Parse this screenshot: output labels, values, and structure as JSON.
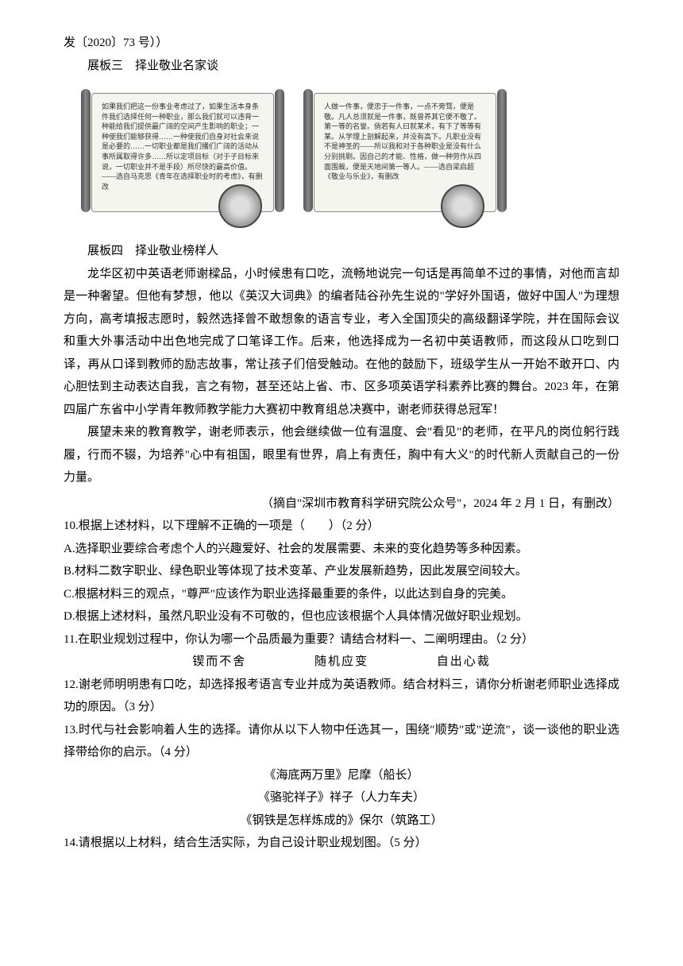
{
  "header_line": "发〔2020〕73 号））",
  "board3_title": "展板三　择业敬业名家谈",
  "scroll_left": {
    "text": "如果我们把这一份事业考虑过了，如果生活本身条件我们选择任何一种职业，那么我们就可以违背一种能给我们提供最广阔的空间产生影响的职业；一种使我们能够获得……一种使我们自身对社会来说是必要的……一切职业都是我们播们广阔的活动从事所属取得许多……所以定项目标（对于子目标来说，一切职业并不是手段）所尽快的最高价值。——选自马克思《青年在选择职业时的考虑》，有删改",
    "portrait": "马克思"
  },
  "scroll_right": {
    "text": "人做一件事，便忠于一件事，一点不旁骛，便是敬。凡人总须就是一件事，既曾养其它便不敬了。第一等的名誉。倘若有人曰就某术，有下了等等有某。从学理上剖解起来，并没有高下。凡职业没有不是神圣的——所以我和对于各种职业是没有什么分别挑剔。因自己的才能、性格，做一种劳作从四面围裁，便是天地间第一等人。——选自梁启超《敬业与乐业》，有删改",
    "portrait": "梁启超"
  },
  "board4_title": "展板四　择业敬业榜样人",
  "para1": "龙华区初中英语老师谢樑品，小时候患有口吃，流畅地说完一句话是再简单不过的事情，对他而言却是一种奢望。但他有梦想，他以《英汉大词典》的编者陆谷孙先生说的\"学好外国语，做好中国人\"为理想方向，高考填报志愿时，毅然选择曾不敢想象的语言专业，考入全国顶尖的高级翻译学院，并在国际会议和重大外事活动中出色地完成了口笔译工作。后来，他选择成为一名初中英语教师，而这段从口吃到口译，再从口译到教师的励志故事，常让孩子们倍受触动。在他的鼓励下，班级学生从一开始不敢开口、内心胆怯到主动表达自我，言之有物，甚至还站上省、市、区多项英语学科素养比赛的舞台。2023 年，在第四届广东省中小学青年教师教学能力大赛初中教育组总决赛中，谢老师获得总冠军！",
  "para2": "展望未来的教育教学，谢老师表示，他会继续做一位有温度、会\"看见\"的老师，在平凡的岗位躬行践履，行而不辍，为培养\"心中有祖国，眼里有世界，肩上有责任，胸中有大义\"的时代新人贡献自己的一份力量。",
  "source": "（摘自\"深圳市教育科学研究院公众号\"，2024 年 2 月 1 日，有删改）",
  "q10": "10.根据上述材料，以下理解不正确的一项是（　　）（2 分）",
  "q10_a": "A.选择职业要综合考虑个人的兴趣爱好、社会的发展需要、未来的变化趋势等多种因素。",
  "q10_b": "B.材料二数字职业、绿色职业等体现了技术变革、产业发展新趋势，因此发展空间较大。",
  "q10_c": "C.根据材料三的观点，\"尊严\"应该作为职业选择最重要的条件，以此达到自身的完美。",
  "q10_d": "D.根据上述材料，虽然凡职业没有不可敬的，但也应该根据个人具体情况做好职业规划。",
  "q11": "11.在职业规划过程中，你认为哪一个品质最为重要？请结合材料一、二阐明理由。（2 分）",
  "q11_opt1": "锲而不舍",
  "q11_opt2": "随机应变",
  "q11_opt3": "自出心裁",
  "q12": "12.谢老师明明患有口吃，却选择报考语言专业并成为英语教师。结合材料三，请你分析谢老师职业选择成功的原因。（3 分）",
  "q13": "13.时代与社会影响着人生的选择。请你从以下人物中任选其一，围绕\"顺势\"或\"逆流\"，谈一谈他的职业选择带给你的启示。（4 分）",
  "q13_book1": "《海底两万里》尼摩（船长）",
  "q13_book2": "《骆驼祥子》祥子（人力车夫）",
  "q13_book3": "《钢铁是怎样炼成的》保尔（筑路工）",
  "q14": "14.请根据以上材料，结合生活实际，为自己设计职业规划图。（5 分）"
}
